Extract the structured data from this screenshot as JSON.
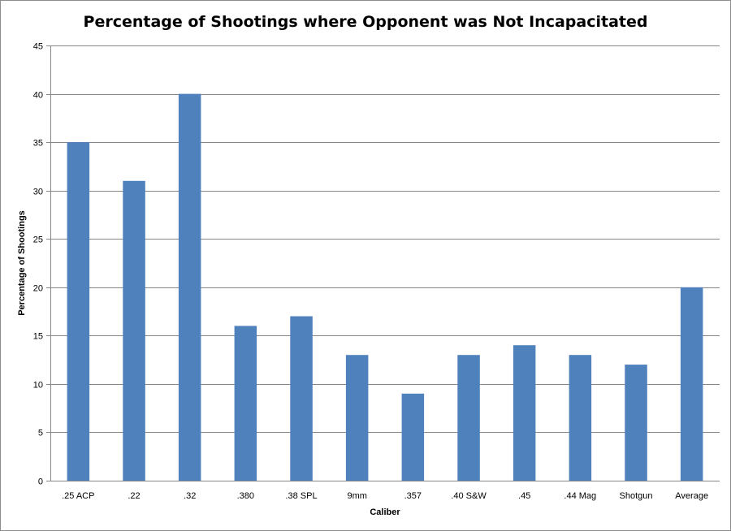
{
  "chart_data": {
    "type": "bar",
    "title": "Percentage of Shootings where Opponent was Not Incapacitated",
    "xlabel": "Caliber",
    "ylabel": "Percentage of Shootings",
    "categories": [
      ".25 ACP",
      ".22",
      ".32",
      ".380",
      ".38 SPL",
      "9mm",
      ".357",
      ".40 S&W",
      ".45",
      ".44 Mag",
      "Shotgun",
      "Average"
    ],
    "values": [
      35,
      31,
      40,
      16,
      17,
      13,
      9,
      13,
      14,
      13,
      12,
      20
    ],
    "ylim": [
      0,
      45
    ],
    "yticks": [
      0,
      5,
      10,
      15,
      20,
      25,
      30,
      35,
      40,
      45
    ],
    "grid": true,
    "legend": "none",
    "bar_color": "#4F81BD",
    "grid_color": "#868686"
  }
}
